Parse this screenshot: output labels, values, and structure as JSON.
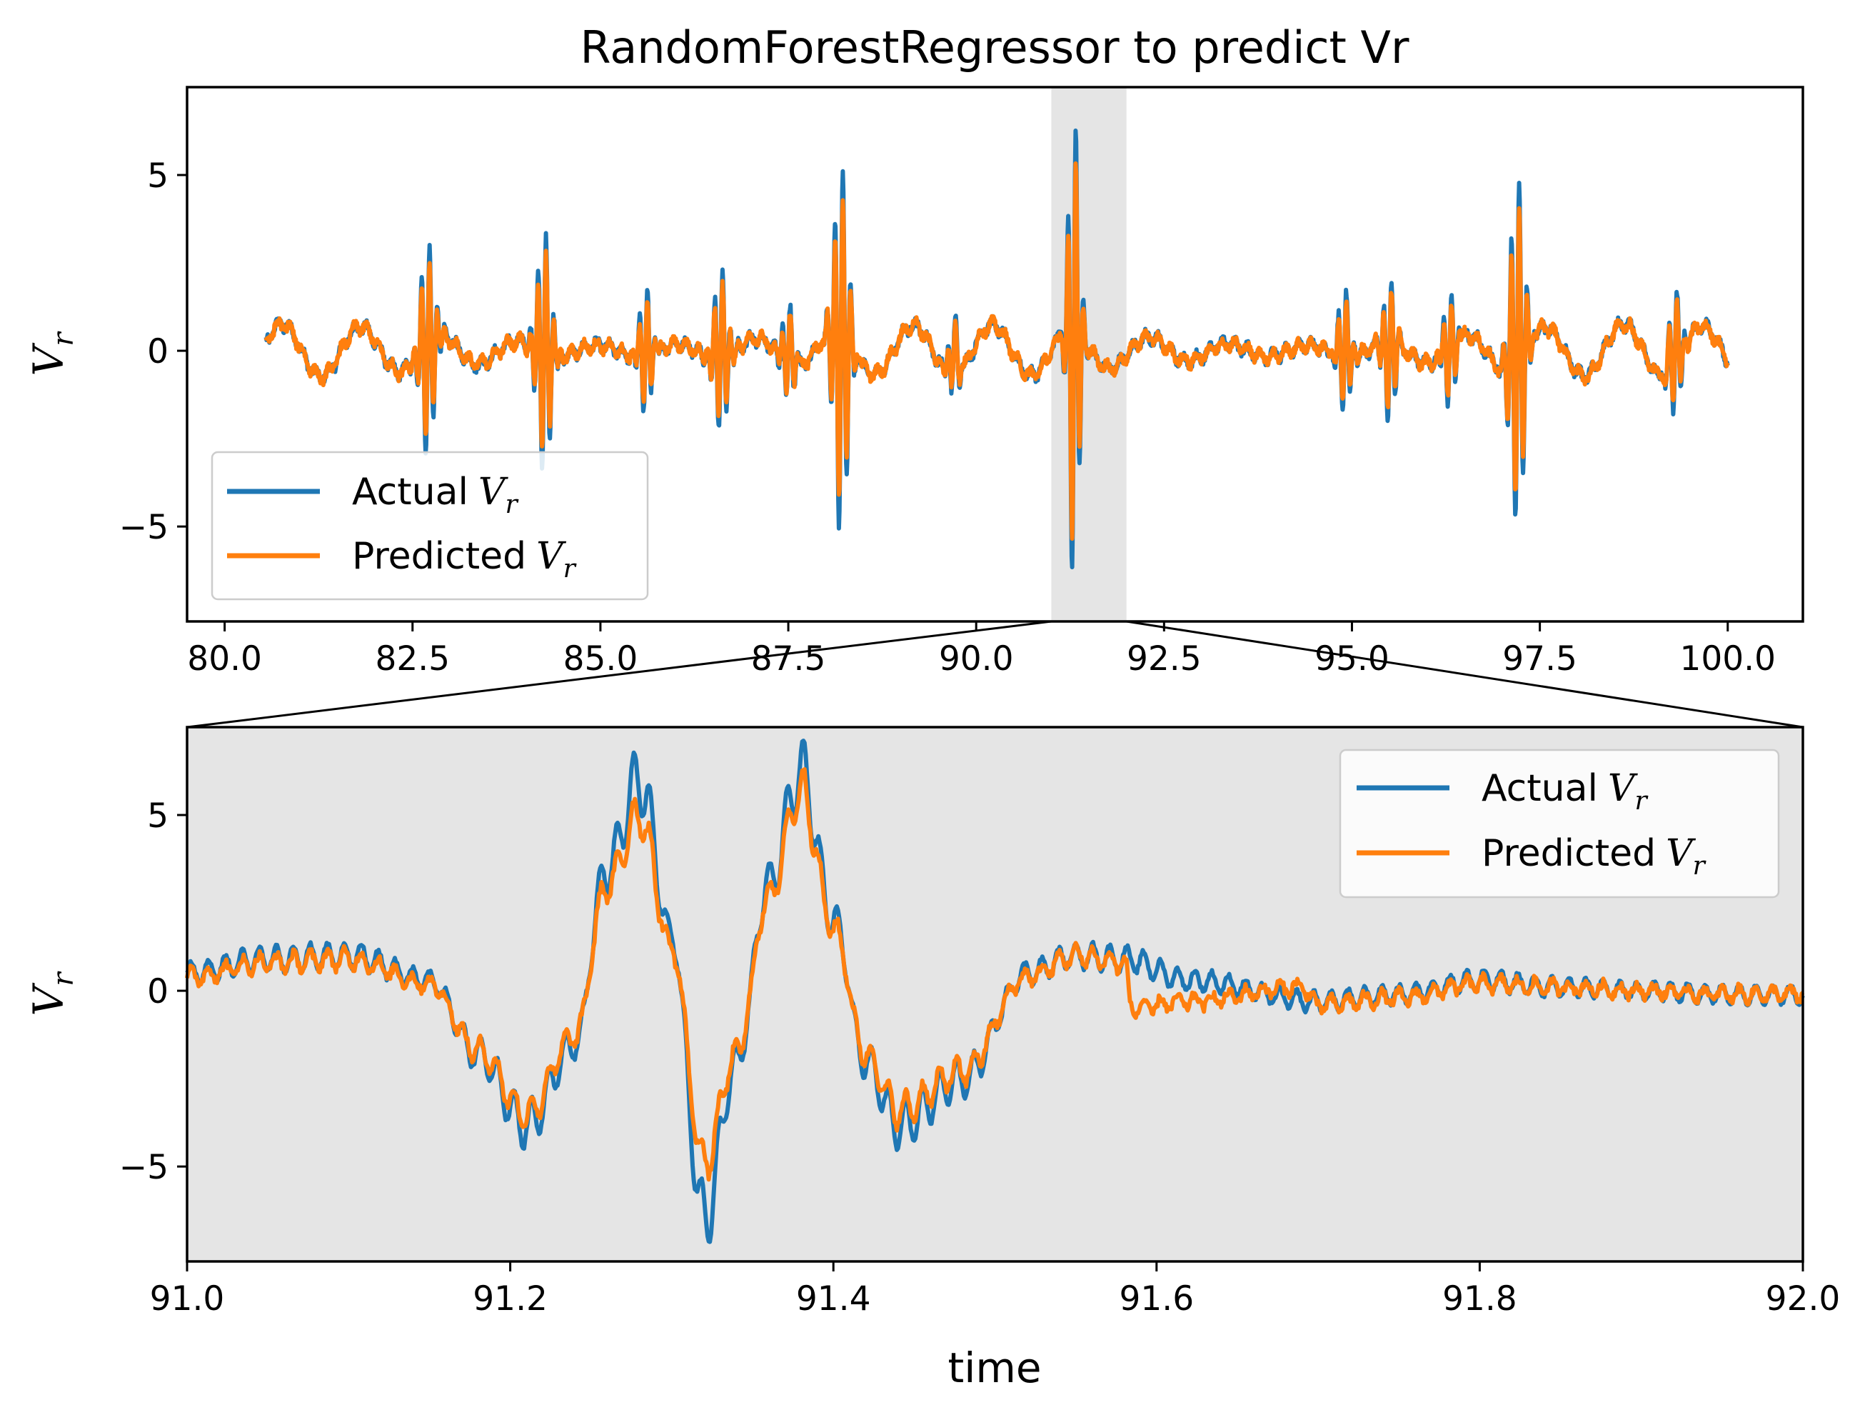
{
  "chart_data": [
    {
      "type": "line",
      "title": "RandomForestRegressor to predict Vr",
      "xlabel": "",
      "ylabel": "V_r",
      "xlim": [
        79.5,
        101.0
      ],
      "ylim": [
        -7.7,
        7.5
      ],
      "x_ticks": [
        80.0,
        82.5,
        85.0,
        87.5,
        90.0,
        92.5,
        95.0,
        97.5,
        100.0
      ],
      "x_tick_labels": [
        "80.0",
        "82.5",
        "85.0",
        "87.5",
        "90.0",
        "92.5",
        "95.0",
        "97.5",
        "100.0"
      ],
      "y_ticks": [
        5,
        0,
        -5
      ],
      "y_tick_labels": [
        "5",
        "0",
        "−5"
      ],
      "legend": {
        "position": "lower-left",
        "entries": [
          {
            "name": "Actual",
            "sub": "r"
          },
          {
            "name": "Predicted",
            "sub": "r"
          }
        ]
      },
      "highlight_region": [
        91.0,
        92.0
      ],
      "bursts": [
        {
          "t": 82.7,
          "amp": 3.0,
          "width": 0.12
        },
        {
          "t": 84.25,
          "amp": 3.4,
          "width": 0.12
        },
        {
          "t": 85.6,
          "amp": 1.8,
          "width": 0.1
        },
        {
          "t": 86.6,
          "amp": 2.3,
          "width": 0.12
        },
        {
          "t": 87.5,
          "amp": 1.4,
          "width": 0.1
        },
        {
          "t": 88.2,
          "amp": 5.2,
          "width": 0.12
        },
        {
          "t": 89.7,
          "amp": 1.2,
          "width": 0.08
        },
        {
          "t": 91.3,
          "amp": 6.8,
          "width": 0.09
        },
        {
          "t": 94.9,
          "amp": 1.8,
          "width": 0.1
        },
        {
          "t": 95.5,
          "amp": 2.1,
          "width": 0.1
        },
        {
          "t": 96.3,
          "amp": 1.6,
          "width": 0.1
        },
        {
          "t": 97.2,
          "amp": 4.9,
          "width": 0.12
        },
        {
          "t": 99.3,
          "amp": 1.8,
          "width": 0.1
        }
      ],
      "series": [
        {
          "name": "Actual V_r",
          "color": "#1f77b4",
          "x_range": [
            80.55,
            100.0
          ]
        },
        {
          "name": "Predicted V_r",
          "color": "#ff7f0e",
          "x_range": [
            80.55,
            100.0
          ]
        }
      ]
    },
    {
      "type": "line",
      "xlabel": "time",
      "ylabel": "V_r",
      "xlim": [
        91.0,
        92.0
      ],
      "ylim": [
        -7.7,
        7.5
      ],
      "x_ticks": [
        91.0,
        91.2,
        91.4,
        91.6,
        91.8,
        92.0
      ],
      "x_tick_labels": [
        "91.0",
        "91.2",
        "91.4",
        "91.6",
        "91.8",
        "92.0"
      ],
      "y_ticks": [
        5,
        0,
        -5
      ],
      "y_tick_labels": [
        "5",
        "0",
        "−5"
      ],
      "legend": {
        "position": "top-right",
        "entries": [
          {
            "name": "Actual",
            "sub": "r"
          },
          {
            "name": "Predicted",
            "sub": "r"
          }
        ]
      },
      "background": "#e5e5e5",
      "series": [
        {
          "name": "Actual V_r",
          "color": "#1f77b4",
          "x": [
            91.0,
            91.05,
            91.1,
            91.15,
            91.18,
            91.21,
            91.24,
            91.26,
            91.28,
            91.3,
            91.32,
            91.34,
            91.36,
            91.38,
            91.4,
            91.42,
            91.44,
            91.48,
            91.52,
            91.55,
            91.58,
            91.62,
            91.7,
            91.75,
            91.8,
            91.85,
            91.9,
            91.95,
            92.0
          ],
          "y": [
            0.5,
            0.9,
            1.0,
            0.3,
            -1.8,
            -3.8,
            -1.5,
            3.5,
            6.0,
            1.5,
            -6.5,
            -2.0,
            3.0,
            6.2,
            2.0,
            -2.0,
            -3.8,
            -2.5,
            0.5,
            1.0,
            0.9,
            0.3,
            -0.3,
            -0.1,
            0.3,
            0.1,
            0.0,
            -0.1,
            -0.1
          ]
        },
        {
          "name": "Predicted V_r",
          "color": "#ff7f0e",
          "x": [
            91.0,
            91.05,
            91.1,
            91.15,
            91.18,
            91.21,
            91.24,
            91.26,
            91.28,
            91.3,
            91.32,
            91.34,
            91.36,
            91.38,
            91.4,
            91.42,
            91.44,
            91.48,
            91.52,
            91.55,
            91.58,
            91.585,
            91.62,
            91.69,
            91.7,
            91.75,
            91.8,
            91.85,
            91.9,
            91.95,
            92.0
          ],
          "y": [
            0.4,
            0.8,
            0.9,
            0.2,
            -1.7,
            -3.5,
            -1.3,
            3.0,
            5.0,
            1.2,
            -4.9,
            -1.8,
            2.7,
            5.7,
            1.8,
            -1.8,
            -3.4,
            -2.3,
            0.4,
            1.0,
            0.8,
            -0.5,
            -0.3,
            0.1,
            -0.4,
            -0.2,
            0.2,
            0.1,
            0.0,
            -0.1,
            -0.1
          ]
        }
      ]
    }
  ]
}
